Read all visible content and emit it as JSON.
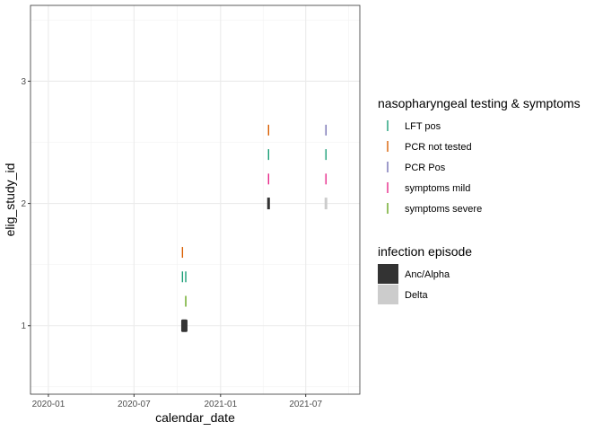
{
  "chart_data": {
    "type": "scatter",
    "xlabel": "calendar_date",
    "ylabel": "elig_study_id",
    "x_ticks": [
      "2020-01",
      "2020-07",
      "2021-01",
      "2021-07"
    ],
    "x_tick_values": [
      "2020-01-01",
      "2020-07-01",
      "2021-01-01",
      "2021-07-01"
    ],
    "xlim": [
      "2019-11-24",
      "2021-10-24"
    ],
    "y_ticks": [
      1,
      2,
      3
    ],
    "ylim": [
      0.44,
      3.62
    ],
    "grid": true,
    "legend_position": "right",
    "legends": [
      {
        "title": "nasopharyngeal testing & symptoms",
        "entries": [
          {
            "label": "LFT pos",
            "color": "#1b9e77"
          },
          {
            "label": "PCR not tested",
            "color": "#d95f02"
          },
          {
            "label": "PCR Pos",
            "color": "#7570b3"
          },
          {
            "label": "symptoms mild",
            "color": "#e7298a"
          },
          {
            "label": "symptoms severe",
            "color": "#66a61e"
          }
        ]
      },
      {
        "title": "infection episode",
        "entries": [
          {
            "label": "Anc/Alpha",
            "color": "#333333"
          },
          {
            "label": "Delta",
            "color": "#cccccc"
          }
        ]
      }
    ],
    "episodes": [
      {
        "name": "Anc/Alpha",
        "color": "#333333",
        "x": "2020-10-16",
        "y": 1
      },
      {
        "name": "Anc/Alpha",
        "color": "#333333",
        "x": "2021-04-13",
        "y": 2
      },
      {
        "name": "Delta",
        "color": "#cccccc",
        "x": "2021-08-13",
        "y": 2
      }
    ],
    "series": [
      {
        "name": "PCR not tested",
        "color": "#d95f02",
        "points": [
          {
            "x": "2020-10-12",
            "y": 1.6
          },
          {
            "x": "2021-04-13",
            "y": 2.6
          }
        ]
      },
      {
        "name": "LFT pos",
        "color": "#1b9e77",
        "points": [
          {
            "x": "2020-10-12",
            "y": 1.4
          },
          {
            "x": "2020-10-19",
            "y": 1.4
          },
          {
            "x": "2021-04-13",
            "y": 2.4
          },
          {
            "x": "2021-08-13",
            "y": 2.4
          }
        ]
      },
      {
        "name": "PCR Pos",
        "color": "#7570b3",
        "points": [
          {
            "x": "2021-08-13",
            "y": 2.6
          }
        ]
      },
      {
        "name": "symptoms mild",
        "color": "#e7298a",
        "points": [
          {
            "x": "2021-04-13",
            "y": 2.2
          },
          {
            "x": "2021-08-13",
            "y": 2.2
          }
        ]
      },
      {
        "name": "symptoms severe",
        "color": "#66a61e",
        "points": [
          {
            "x": "2020-10-19",
            "y": 1.2
          }
        ]
      }
    ]
  }
}
